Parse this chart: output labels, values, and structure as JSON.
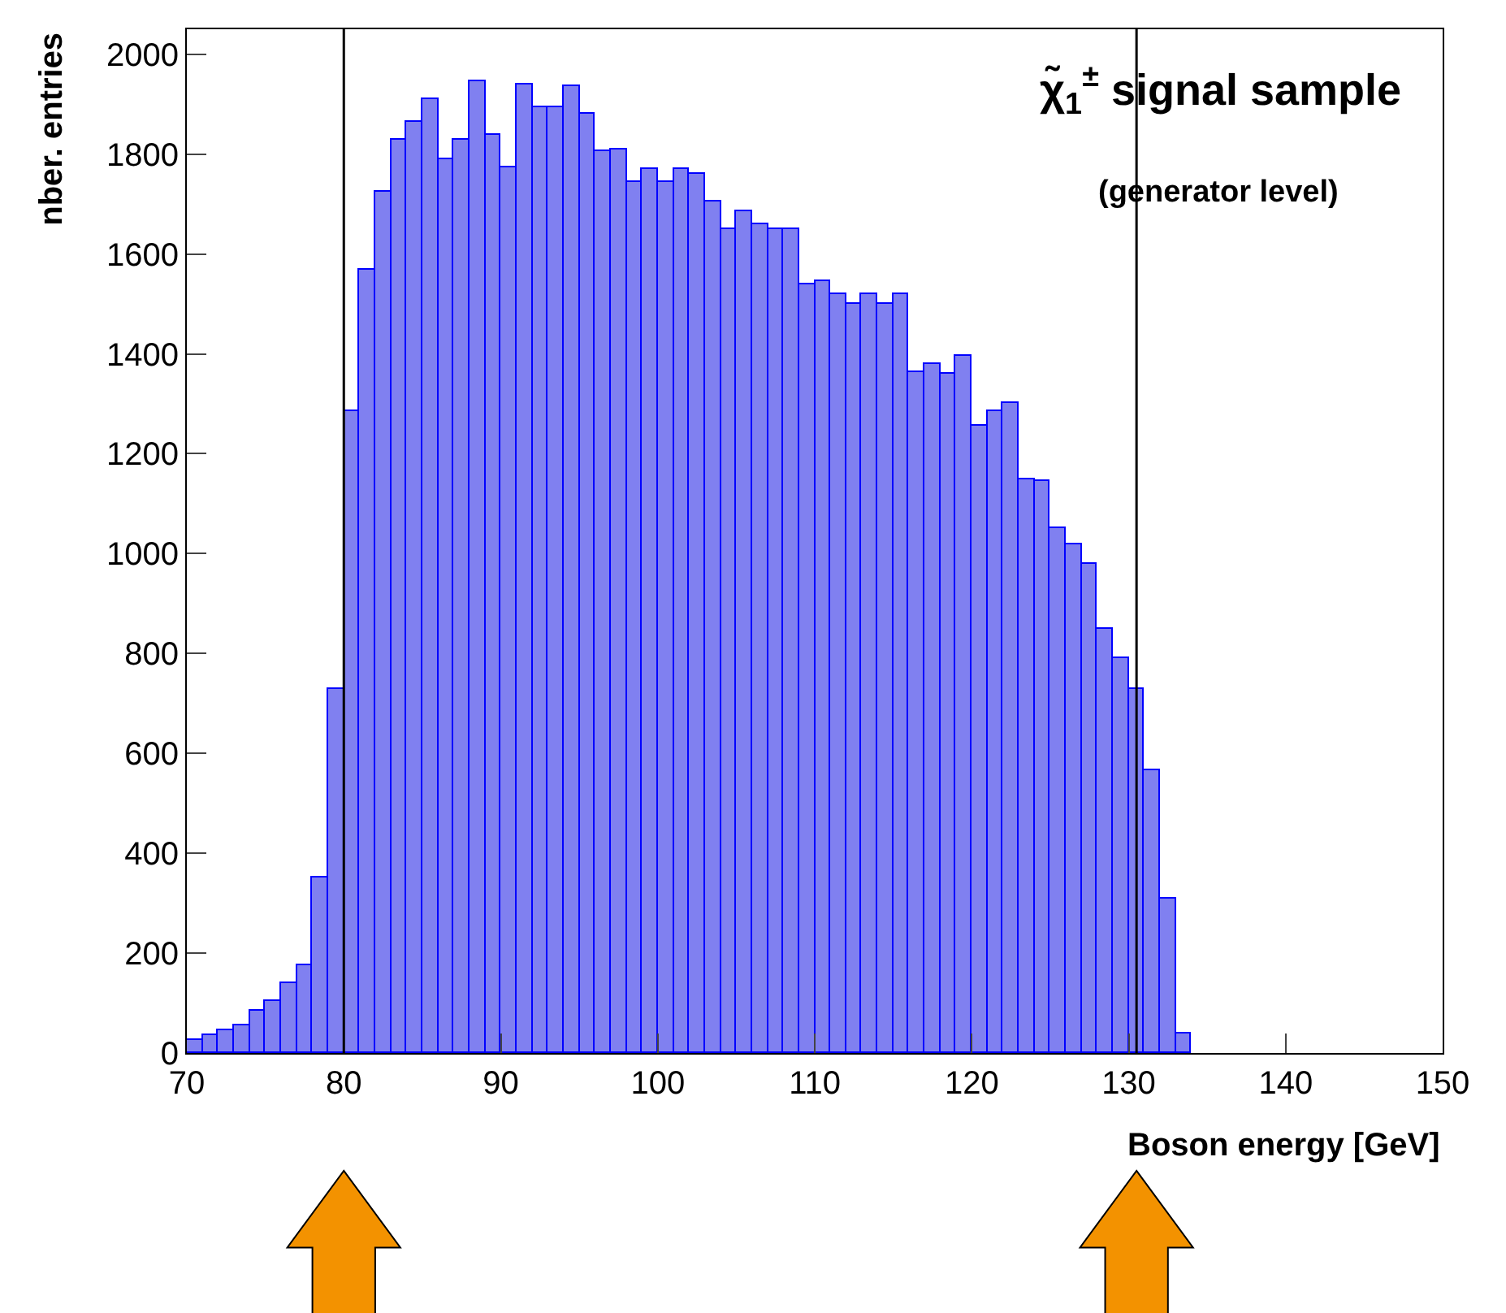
{
  "chart_data": {
    "type": "histogram",
    "title": "χ̃$_{1}$$^{±}$ signal sample",
    "subtitle": "(generator level)",
    "xlabel": "Boson energy [GeV]",
    "ylabel": "nber. entries",
    "bins": [
      70,
      71,
      72,
      73,
      74,
      75,
      76,
      77,
      78,
      79,
      80,
      81,
      82,
      83,
      84,
      85,
      86,
      87,
      88,
      89,
      90,
      91,
      92,
      93,
      94,
      95,
      96,
      97,
      98,
      99,
      100,
      101,
      102,
      103,
      104,
      105,
      106,
      107,
      108,
      109,
      110,
      111,
      112,
      113,
      114,
      115,
      116,
      117,
      118,
      119,
      120,
      121,
      122,
      123,
      124,
      125,
      126,
      127,
      128,
      129,
      130,
      131,
      132,
      133,
      134,
      135,
      136,
      137,
      138,
      139,
      140,
      141,
      142,
      143,
      144,
      145,
      146,
      147,
      148,
      149,
      150
    ],
    "values": [
      25,
      35,
      45,
      55,
      85,
      105,
      140,
      175,
      350,
      730,
      1285,
      1570,
      1725,
      1830,
      1865,
      1910,
      1790,
      1830,
      1945,
      1840,
      1775,
      1940,
      1895,
      1895,
      1935,
      1880,
      1805,
      1810,
      1745,
      1770,
      1745,
      1770,
      1760,
      1705,
      1650,
      1685,
      1660,
      1650,
      1650,
      1540,
      1545,
      1520,
      1500,
      1520,
      1500,
      1520,
      1365,
      1380,
      1360,
      1395,
      1255,
      1285,
      1300,
      1150,
      1145,
      1050,
      1020,
      980,
      850,
      790,
      730,
      565,
      310,
      40,
      0,
      0,
      0,
      0,
      0,
      0,
      0,
      0,
      0,
      0,
      0,
      0,
      0,
      0,
      0,
      0
    ],
    "color": "#8080f0",
    "xlim": [
      70,
      150
    ],
    "xticks": [
      70,
      80,
      90,
      100,
      110,
      120,
      130,
      140,
      150
    ],
    "ylim": [
      0,
      2050
    ],
    "yticks": [
      0,
      200,
      400,
      600,
      800,
      1000,
      1200,
      1400,
      1600,
      1800,
      2000
    ],
    "ref_lines": [
      {
        "axis": "x",
        "value": 80,
        "color": "#000000"
      },
      {
        "axis": "x",
        "value": 130.5,
        "color": "#000000"
      }
    ]
  }
}
